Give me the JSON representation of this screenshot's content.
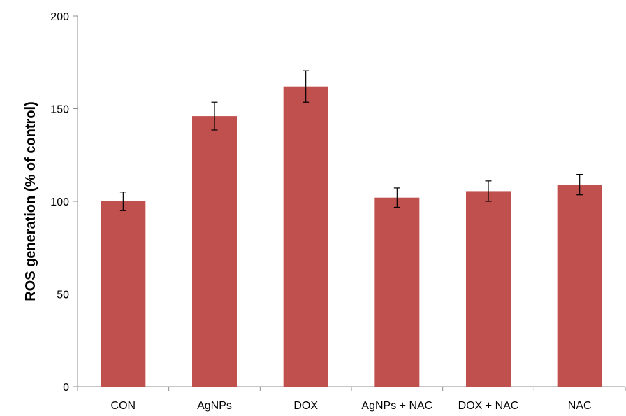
{
  "chart_data": {
    "type": "bar",
    "title": "",
    "xlabel": "",
    "ylabel": "ROS generation (% of control)",
    "ylim": [
      0,
      200
    ],
    "yticks": [
      0,
      50,
      100,
      150,
      200
    ],
    "grid": false,
    "legend": "none",
    "categories": [
      "CON",
      "AgNPs",
      "DOX",
      "AgNPs + NAC",
      "DOX + NAC",
      "NAC"
    ],
    "values": [
      100,
      146,
      162,
      102,
      105.5,
      109
    ],
    "errors": [
      5,
      7.5,
      8.5,
      5.2,
      5.5,
      5.5
    ],
    "bar_color": "#c0504d"
  }
}
